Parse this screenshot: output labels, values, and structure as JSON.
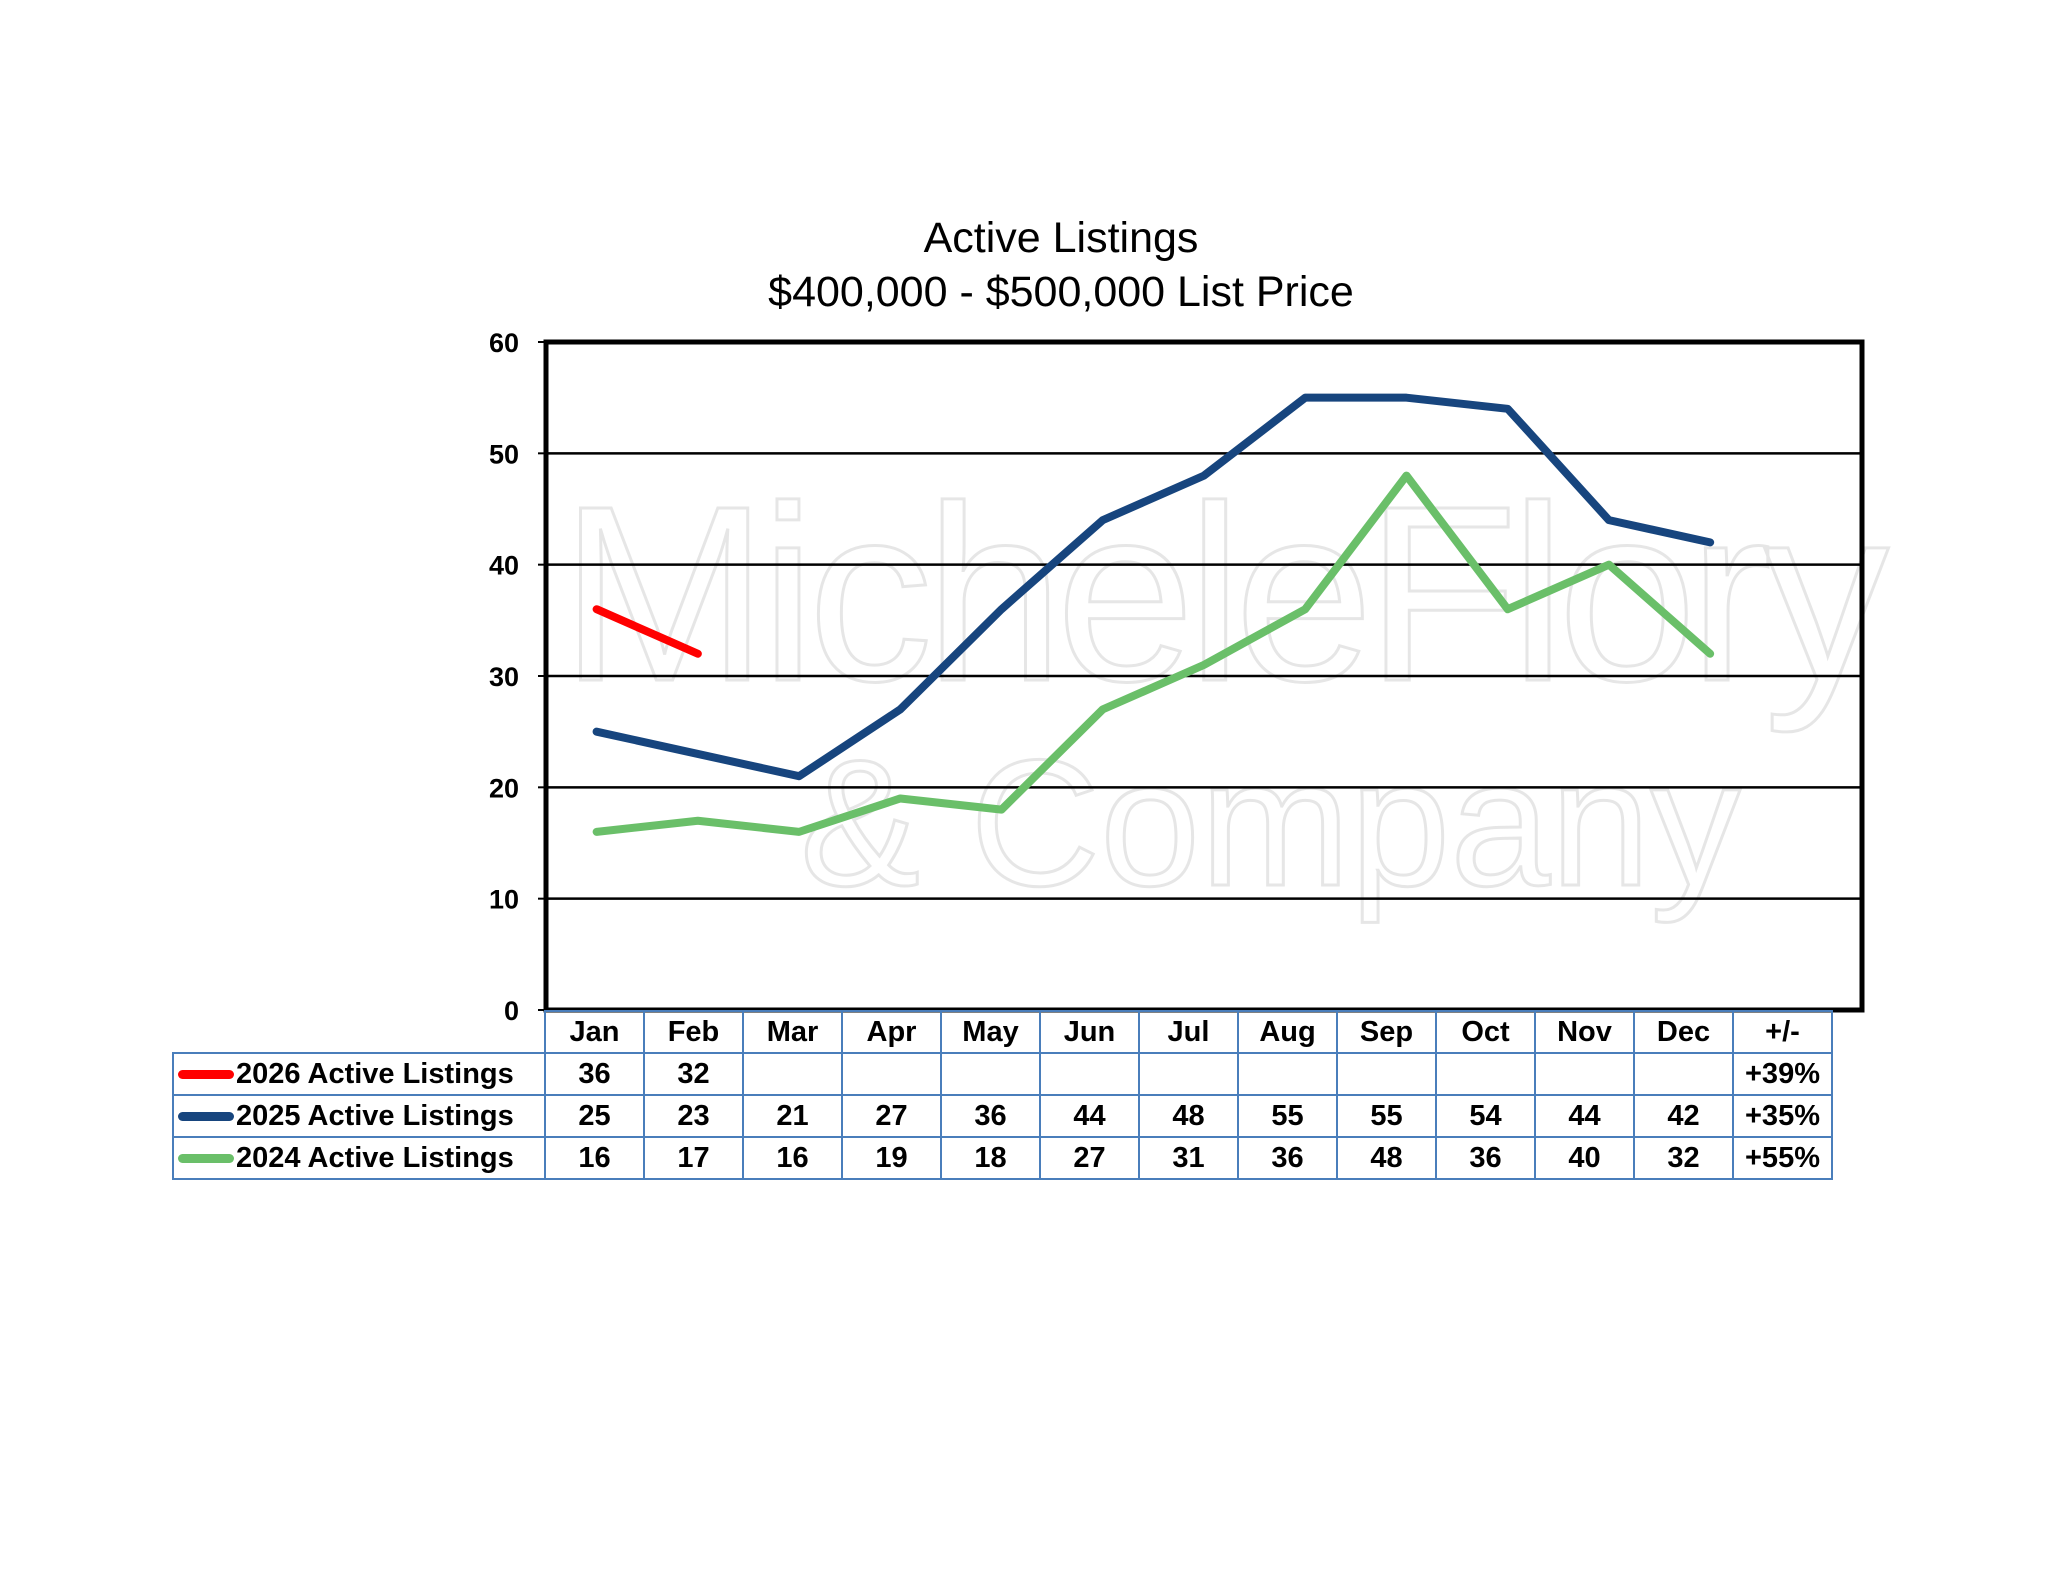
{
  "chart_data": {
    "type": "line",
    "title": "Active Listings",
    "subtitle": "$400,000 - $500,000 List Price",
    "categories": [
      "Jan",
      "Feb",
      "Mar",
      "Apr",
      "May",
      "Jun",
      "Jul",
      "Aug",
      "Sep",
      "Oct",
      "Nov",
      "Dec"
    ],
    "change_header": "+/-",
    "ylim": [
      0,
      60
    ],
    "yticks": [
      0,
      10,
      20,
      30,
      40,
      50,
      60
    ],
    "grid": true,
    "legend": "data-table-bottom",
    "series": [
      {
        "name": "2026 Active Listings",
        "color": "#ff0000",
        "values": [
          36,
          32,
          null,
          null,
          null,
          null,
          null,
          null,
          null,
          null,
          null,
          null
        ],
        "change": "+39%"
      },
      {
        "name": "2025 Active Listings",
        "color": "#17457e",
        "values": [
          25,
          23,
          21,
          27,
          36,
          44,
          48,
          55,
          55,
          54,
          44,
          42
        ],
        "change": "+35%"
      },
      {
        "name": "2024 Active Listings",
        "color": "#6abf69",
        "values": [
          16,
          17,
          16,
          19,
          18,
          27,
          31,
          36,
          48,
          36,
          40,
          32
        ],
        "change": "+55%"
      }
    ]
  },
  "watermark": {
    "line1": "MicheleFlory",
    "line2": "& Company"
  }
}
